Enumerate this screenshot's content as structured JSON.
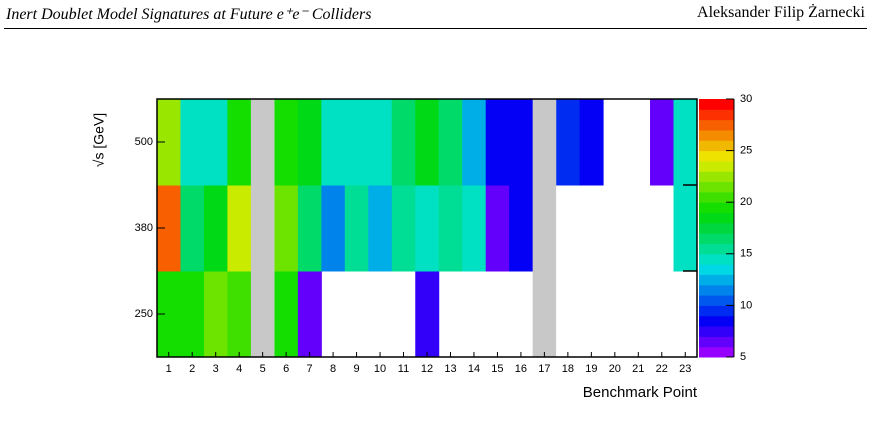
{
  "header": {
    "title": "Inert Doublet Model Signatures at Future e⁺e⁻ Colliders",
    "author": "Aleksander Filip Żarnecki"
  },
  "chart_data": {
    "type": "heatmap",
    "x_label": "Benchmark Point",
    "y_label": "√s  [GeV]",
    "categories": [
      "1",
      "2",
      "3",
      "4",
      "5",
      "6",
      "7",
      "8",
      "9",
      "10",
      "11",
      "12",
      "13",
      "14",
      "15",
      "16",
      "17",
      "18",
      "19",
      "20",
      "21",
      "22",
      "23"
    ],
    "rows": [
      "250",
      "380",
      "500"
    ],
    "values": [
      [
        19,
        19,
        21,
        20,
        null,
        19,
        6,
        null,
        null,
        null,
        null,
        7,
        null,
        null,
        null,
        null,
        null,
        null,
        null,
        null,
        null,
        null,
        null
      ],
      [
        27,
        16,
        18,
        23,
        null,
        21,
        16,
        11,
        15,
        12,
        15,
        14,
        15,
        14,
        6,
        8,
        null,
        null,
        null,
        null,
        null,
        null,
        14
      ],
      [
        22,
        14,
        14,
        19,
        null,
        19,
        18,
        14,
        14,
        14,
        16,
        18,
        16,
        12,
        8,
        8,
        null,
        9,
        8,
        null,
        null,
        6,
        14
      ]
    ],
    "excluded_categories": [
      "5",
      "17"
    ],
    "excluded_color": "#c8c8c8",
    "zlim": [
      5,
      30
    ],
    "zticks": [
      5,
      10,
      15,
      20,
      25,
      30
    ]
  }
}
